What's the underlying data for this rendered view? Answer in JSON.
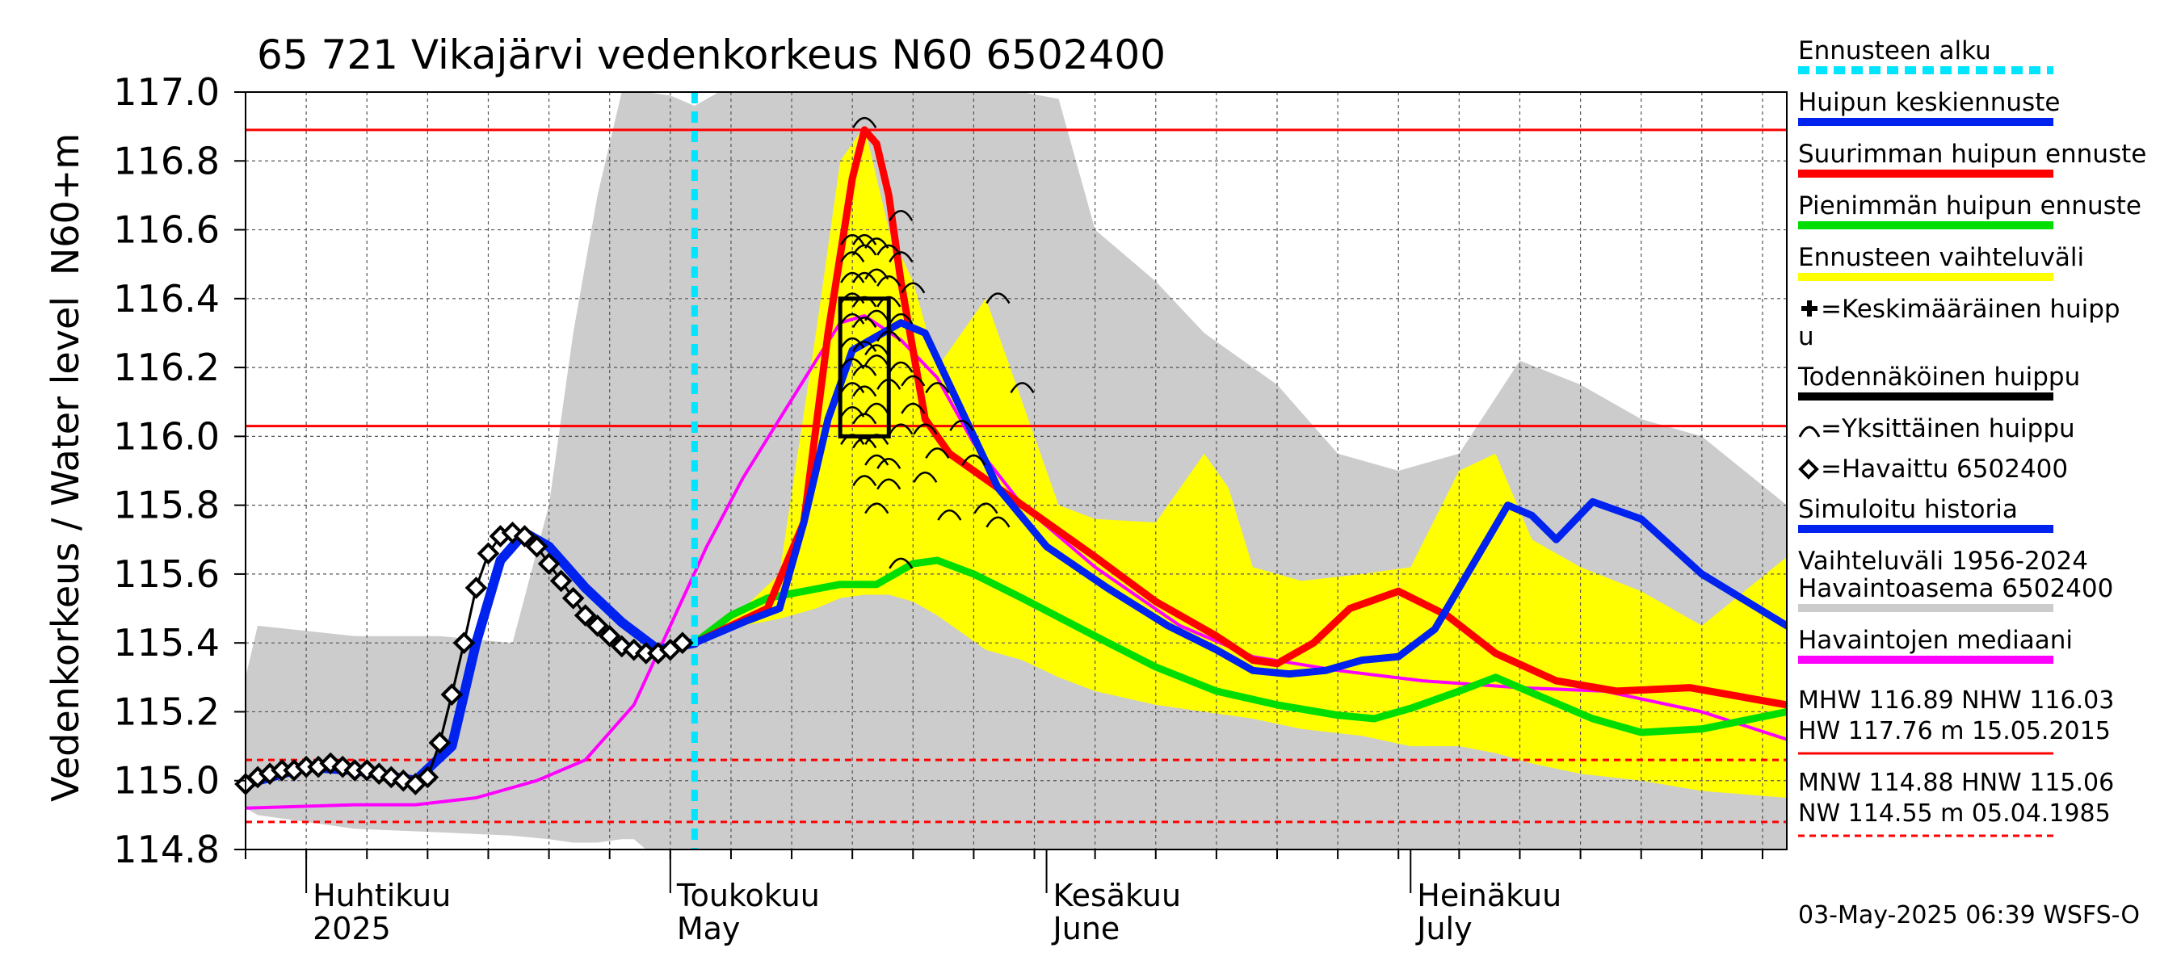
{
  "chart_data": {
    "type": "line",
    "title": "65 721 Vikajärvi vedenkorkeus N60 6502400",
    "ylabel_upper": "N60+m",
    "ylabel": "Vedenkorkeus / Water level",
    "ylim": [
      114.8,
      117.0
    ],
    "yticks": [
      "114.8",
      "115.0",
      "115.2",
      "115.4",
      "115.6",
      "115.8",
      "116.0",
      "116.2",
      "116.4",
      "116.6",
      "116.8",
      "117.0"
    ],
    "xlim": [
      "2025-03-27",
      "2025-08-01"
    ],
    "grid": true,
    "months": [
      {
        "date": "2025-04-01",
        "fi": "Huhtikuu",
        "en": "2025"
      },
      {
        "date": "2025-05-01",
        "fi": "Toukokuu",
        "en": "May"
      },
      {
        "date": "2025-06-01",
        "fi": "Kesäkuu",
        "en": "June"
      },
      {
        "date": "2025-07-01",
        "fi": "Heinäkuu",
        "en": "July"
      }
    ],
    "forecast_start": "2025-05-03",
    "reference_lines": [
      {
        "name": "MHW",
        "value": 116.89,
        "color": "#ff0000",
        "style": "solid"
      },
      {
        "name": "NHW",
        "value": 116.03,
        "color": "#ff0000",
        "style": "solid"
      },
      {
        "name": "HNW",
        "value": 115.06,
        "color": "#ff0000",
        "style": "dashed"
      },
      {
        "name": "MNW",
        "value": 114.88,
        "color": "#ff0000",
        "style": "dashed"
      }
    ],
    "series": [
      {
        "name": "Havaittu 6502400",
        "color": "#000000",
        "marker": "diamond",
        "x": [
          "2025-03-27",
          "2025-03-28",
          "2025-03-29",
          "2025-03-30",
          "2025-03-31",
          "2025-04-01",
          "2025-04-02",
          "2025-04-03",
          "2025-04-04",
          "2025-04-05",
          "2025-04-06",
          "2025-04-07",
          "2025-04-08",
          "2025-04-09",
          "2025-04-10",
          "2025-04-11",
          "2025-04-12",
          "2025-04-13",
          "2025-04-14",
          "2025-04-15",
          "2025-04-16",
          "2025-04-17",
          "2025-04-18",
          "2025-04-19",
          "2025-04-20",
          "2025-04-21",
          "2025-04-22",
          "2025-04-23",
          "2025-04-24",
          "2025-04-25",
          "2025-04-26",
          "2025-04-27",
          "2025-04-28",
          "2025-04-29",
          "2025-04-30",
          "2025-05-01",
          "2025-05-02"
        ],
        "y": [
          114.99,
          115.01,
          115.02,
          115.03,
          115.03,
          115.04,
          115.04,
          115.05,
          115.04,
          115.03,
          115.03,
          115.02,
          115.01,
          115.0,
          114.99,
          115.01,
          115.11,
          115.25,
          115.4,
          115.56,
          115.66,
          115.71,
          115.72,
          115.71,
          115.68,
          115.63,
          115.58,
          115.53,
          115.48,
          115.45,
          115.42,
          115.39,
          115.38,
          115.37,
          115.37,
          115.38,
          115.4
        ]
      },
      {
        "name": "Simuloitu historia",
        "color": "#0022ee",
        "x": [
          "2025-03-27",
          "2025-04-01",
          "2025-04-05",
          "2025-04-10",
          "2025-04-13",
          "2025-04-15",
          "2025-04-17",
          "2025-04-19",
          "2025-04-21",
          "2025-04-24",
          "2025-04-27",
          "2025-04-30",
          "2025-05-03"
        ],
        "y": [
          114.99,
          115.04,
          115.03,
          115.0,
          115.1,
          115.4,
          115.64,
          115.72,
          115.68,
          115.56,
          115.46,
          115.38,
          115.4
        ]
      },
      {
        "name": "Huipun keskiennuste",
        "color": "#0022ee",
        "x": [
          "2025-05-03",
          "2025-05-07",
          "2025-05-10",
          "2025-05-12",
          "2025-05-14",
          "2025-05-16",
          "2025-05-18",
          "2025-05-20",
          "2025-05-22",
          "2025-05-24",
          "2025-05-28",
          "2025-06-01",
          "2025-06-06",
          "2025-06-11",
          "2025-06-15",
          "2025-06-18",
          "2025-06-21",
          "2025-06-24",
          "2025-06-27",
          "2025-06-30",
          "2025-07-03",
          "2025-07-06",
          "2025-07-09",
          "2025-07-11",
          "2025-07-13",
          "2025-07-16",
          "2025-07-20",
          "2025-07-25",
          "2025-08-01"
        ],
        "y": [
          115.4,
          115.46,
          115.5,
          115.75,
          116.05,
          116.25,
          116.29,
          116.33,
          116.3,
          116.15,
          115.85,
          115.68,
          115.56,
          115.45,
          115.38,
          115.32,
          115.31,
          115.32,
          115.35,
          115.36,
          115.44,
          115.62,
          115.8,
          115.77,
          115.7,
          115.81,
          115.76,
          115.6,
          115.45
        ]
      },
      {
        "name": "Suurimman huipun ennuste",
        "color": "#ff0000",
        "x": [
          "2025-05-03",
          "2025-05-06",
          "2025-05-09",
          "2025-05-12",
          "2025-05-14",
          "2025-05-16",
          "2025-05-17",
          "2025-05-18",
          "2025-05-19",
          "2025-05-20",
          "2025-05-22",
          "2025-05-24",
          "2025-05-26",
          "2025-05-30",
          "2025-06-05",
          "2025-06-10",
          "2025-06-15",
          "2025-06-18",
          "2025-06-20",
          "2025-06-23",
          "2025-06-26",
          "2025-06-30",
          "2025-07-04",
          "2025-07-08",
          "2025-07-13",
          "2025-07-18",
          "2025-07-24",
          "2025-08-01"
        ],
        "y": [
          115.4,
          115.45,
          115.5,
          115.75,
          116.3,
          116.75,
          116.89,
          116.85,
          116.7,
          116.45,
          116.05,
          115.95,
          115.9,
          115.8,
          115.65,
          115.52,
          115.42,
          115.35,
          115.34,
          115.4,
          115.5,
          115.55,
          115.48,
          115.37,
          115.29,
          115.26,
          115.27,
          115.22
        ]
      },
      {
        "name": "Pienimmän huipun ennuste",
        "color": "#00dd00",
        "x": [
          "2025-05-03",
          "2025-05-06",
          "2025-05-09",
          "2025-05-12",
          "2025-05-15",
          "2025-05-18",
          "2025-05-21",
          "2025-05-23",
          "2025-05-26",
          "2025-05-30",
          "2025-06-05",
          "2025-06-10",
          "2025-06-15",
          "2025-06-20",
          "2025-06-25",
          "2025-06-28",
          "2025-07-01",
          "2025-07-05",
          "2025-07-08",
          "2025-07-12",
          "2025-07-16",
          "2025-07-20",
          "2025-07-25",
          "2025-08-01"
        ],
        "y": [
          115.4,
          115.48,
          115.53,
          115.55,
          115.57,
          115.57,
          115.63,
          115.64,
          115.6,
          115.53,
          115.42,
          115.33,
          115.26,
          115.22,
          115.19,
          115.18,
          115.21,
          115.26,
          115.3,
          115.24,
          115.18,
          115.14,
          115.15,
          115.2
        ]
      },
      {
        "name": "Havaintojen mediaani",
        "color": "#ff00ff",
        "x": [
          "2025-03-27",
          "2025-04-05",
          "2025-04-10",
          "2025-04-15",
          "2025-04-20",
          "2025-04-24",
          "2025-04-28",
          "2025-05-01",
          "2025-05-04",
          "2025-05-07",
          "2025-05-10",
          "2025-05-13",
          "2025-05-15",
          "2025-05-17",
          "2025-05-20",
          "2025-05-23",
          "2025-05-26",
          "2025-05-30",
          "2025-06-05",
          "2025-06-12",
          "2025-06-18",
          "2025-06-25",
          "2025-07-02",
          "2025-07-10",
          "2025-07-17",
          "2025-07-25",
          "2025-08-01"
        ],
        "y": [
          114.92,
          114.93,
          114.93,
          114.95,
          115.0,
          115.06,
          115.22,
          115.45,
          115.68,
          115.88,
          116.05,
          116.22,
          116.33,
          116.35,
          116.28,
          116.17,
          115.98,
          115.8,
          115.62,
          115.45,
          115.36,
          115.32,
          115.29,
          115.27,
          115.26,
          115.2,
          115.12
        ]
      }
    ],
    "bands": [
      {
        "name": "Ennusteen vaihteluväli",
        "color": "#ffff00",
        "x": [
          "2025-05-03",
          "2025-05-07",
          "2025-05-10",
          "2025-05-13",
          "2025-05-15",
          "2025-05-17",
          "2025-05-19",
          "2025-05-21",
          "2025-05-23",
          "2025-05-25",
          "2025-05-27",
          "2025-05-30",
          "2025-06-02",
          "2025-06-05",
          "2025-06-10",
          "2025-06-14",
          "2025-06-16",
          "2025-06-18",
          "2025-06-22",
          "2025-06-27",
          "2025-07-01",
          "2025-07-05",
          "2025-07-08",
          "2025-07-11",
          "2025-07-15",
          "2025-07-20",
          "2025-07-25",
          "2025-08-01"
        ],
        "upper": [
          115.4,
          115.5,
          115.6,
          116.3,
          116.8,
          116.9,
          116.6,
          116.45,
          116.2,
          116.3,
          116.4,
          116.1,
          115.8,
          115.76,
          115.75,
          115.95,
          115.85,
          115.62,
          115.58,
          115.6,
          115.62,
          115.9,
          115.95,
          115.7,
          115.62,
          115.55,
          115.45,
          115.65
        ],
        "lower": [
          115.4,
          115.45,
          115.47,
          115.5,
          115.53,
          115.54,
          115.54,
          115.52,
          115.48,
          115.43,
          115.38,
          115.35,
          115.3,
          115.26,
          115.22,
          115.2,
          115.19,
          115.18,
          115.15,
          115.13,
          115.1,
          115.1,
          115.08,
          115.05,
          115.02,
          115.0,
          114.97,
          114.95
        ]
      },
      {
        "name": "Vaihteluväli 1956-2024 Havaintoasema 6502400",
        "color": "#cccccc",
        "x": [
          "2025-03-27",
          "2025-03-28",
          "2025-04-05",
          "2025-04-12",
          "2025-04-18",
          "2025-04-21",
          "2025-04-23",
          "2025-04-25",
          "2025-04-27",
          "2025-04-28",
          "2025-04-29",
          "2025-05-01",
          "2025-05-03",
          "2025-05-05",
          "2025-05-08",
          "2025-05-12",
          "2025-05-16",
          "2025-05-20",
          "2025-05-25",
          "2025-05-30",
          "2025-06-02",
          "2025-06-05",
          "2025-06-10",
          "2025-06-14",
          "2025-06-20",
          "2025-06-25",
          "2025-06-30",
          "2025-07-05",
          "2025-07-10",
          "2025-07-15",
          "2025-07-20",
          "2025-07-25",
          "2025-08-01"
        ],
        "upper": [
          115.3,
          115.45,
          115.42,
          115.42,
          115.4,
          115.8,
          116.3,
          116.7,
          117.0,
          117.0,
          117.0,
          116.99,
          116.96,
          117.0,
          117.0,
          117.0,
          117.0,
          117.0,
          117.0,
          117.0,
          116.98,
          116.6,
          116.45,
          116.3,
          116.15,
          115.95,
          115.9,
          115.95,
          116.22,
          116.15,
          116.05,
          116.0,
          115.8
        ],
        "lower": [
          114.92,
          114.9,
          114.86,
          114.85,
          114.84,
          114.83,
          114.82,
          114.82,
          114.83,
          114.83,
          114.8,
          114.8,
          114.8,
          114.8,
          114.8,
          114.8,
          114.8,
          114.8,
          114.8,
          114.8,
          114.8,
          114.8,
          114.8,
          114.8,
          114.8,
          114.8,
          114.8,
          114.8,
          114.8,
          114.8,
          114.8,
          114.8,
          114.8
        ]
      }
    ],
    "probable_peak_box": {
      "x_start": "2025-05-15",
      "x_end": "2025-05-19",
      "y_low": 116.0,
      "y_high": 116.4
    },
    "individual_peaks": [
      {
        "x": "2025-05-17",
        "y": 116.92
      },
      {
        "x": "2025-05-20",
        "y": 116.65
      },
      {
        "x": "2025-05-16",
        "y": 116.58
      },
      {
        "x": "2025-05-17",
        "y": 116.58
      },
      {
        "x": "2025-05-18",
        "y": 116.57
      },
      {
        "x": "2025-05-19",
        "y": 116.55
      },
      {
        "x": "2025-05-16",
        "y": 116.53
      },
      {
        "x": "2025-05-17",
        "y": 116.55
      },
      {
        "x": "2025-05-20",
        "y": 116.53
      },
      {
        "x": "2025-05-16",
        "y": 116.47
      },
      {
        "x": "2025-05-17",
        "y": 116.47
      },
      {
        "x": "2025-05-18",
        "y": 116.48
      },
      {
        "x": "2025-05-19",
        "y": 116.46
      },
      {
        "x": "2025-05-21",
        "y": 116.44
      },
      {
        "x": "2025-05-16",
        "y": 116.41
      },
      {
        "x": "2025-05-17",
        "y": 116.4
      },
      {
        "x": "2025-05-19",
        "y": 116.4
      },
      {
        "x": "2025-05-28",
        "y": 116.41
      },
      {
        "x": "2025-05-16",
        "y": 116.35
      },
      {
        "x": "2025-05-17",
        "y": 116.34
      },
      {
        "x": "2025-05-18",
        "y": 116.36
      },
      {
        "x": "2025-05-20",
        "y": 116.35
      },
      {
        "x": "2025-05-16",
        "y": 116.28
      },
      {
        "x": "2025-05-17",
        "y": 116.27
      },
      {
        "x": "2025-05-18",
        "y": 116.26
      },
      {
        "x": "2025-05-19",
        "y": 116.3
      },
      {
        "x": "2025-05-16",
        "y": 116.22
      },
      {
        "x": "2025-05-17",
        "y": 116.2
      },
      {
        "x": "2025-05-18",
        "y": 116.23
      },
      {
        "x": "2025-05-20",
        "y": 116.21
      },
      {
        "x": "2025-05-16",
        "y": 116.15
      },
      {
        "x": "2025-05-17",
        "y": 116.14
      },
      {
        "x": "2025-05-19",
        "y": 116.16
      },
      {
        "x": "2025-05-21",
        "y": 116.17
      },
      {
        "x": "2025-05-23",
        "y": 116.15
      },
      {
        "x": "2025-05-30",
        "y": 116.15
      },
      {
        "x": "2025-05-16",
        "y": 116.08
      },
      {
        "x": "2025-05-17",
        "y": 116.06
      },
      {
        "x": "2025-05-18",
        "y": 116.09
      },
      {
        "x": "2025-05-21",
        "y": 116.09
      },
      {
        "x": "2025-05-25",
        "y": 116.04
      },
      {
        "x": "2025-05-16",
        "y": 116.0
      },
      {
        "x": "2025-05-17",
        "y": 115.99
      },
      {
        "x": "2025-05-18",
        "y": 116.0
      },
      {
        "x": "2025-05-20",
        "y": 116.03
      },
      {
        "x": "2025-05-22",
        "y": 116.03
      },
      {
        "x": "2025-05-18",
        "y": 115.94
      },
      {
        "x": "2025-05-19",
        "y": 115.93
      },
      {
        "x": "2025-05-23",
        "y": 115.96
      },
      {
        "x": "2025-05-26",
        "y": 115.94
      },
      {
        "x": "2025-05-17",
        "y": 115.88
      },
      {
        "x": "2025-05-19",
        "y": 115.87
      },
      {
        "x": "2025-05-22",
        "y": 115.89
      },
      {
        "x": "2025-05-18",
        "y": 115.8
      },
      {
        "x": "2025-05-24",
        "y": 115.78
      },
      {
        "x": "2025-05-27",
        "y": 115.8
      },
      {
        "x": "2025-05-28",
        "y": 115.76
      },
      {
        "x": "2025-05-20",
        "y": 115.64
      }
    ]
  },
  "legend": {
    "items": [
      {
        "label": "Ennusteen alku",
        "color": "#00e5ff",
        "kind": "dashed"
      },
      {
        "label": "Huipun keskiennuste",
        "color": "#0022ee",
        "kind": "line"
      },
      {
        "label": "Suurimman huipun ennuste",
        "color": "#ff0000",
        "kind": "line"
      },
      {
        "label": "Pienimmän huipun ennuste",
        "color": "#00dd00",
        "kind": "line"
      },
      {
        "label": "Ennusteen vaihteluväli",
        "color": "#ffff00",
        "kind": "line"
      },
      {
        "label": "=Keskimääräinen huipp",
        "label2": "u",
        "color": "#000000",
        "kind": "plus"
      },
      {
        "label": "Todennäköinen huippu",
        "color": "#000000",
        "kind": "line"
      },
      {
        "label": "=Yksittäinen huippu",
        "color": "#000000",
        "kind": "arc"
      },
      {
        "label": "=Havaittu 6502400",
        "color": "#000000",
        "kind": "diamond"
      },
      {
        "label": "Simuloitu historia",
        "color": "#0022ee",
        "kind": "line"
      },
      {
        "label": "Vaihteluväli 1956-2024",
        "label2": " Havaintoasema 6502400",
        "color": "#cccccc",
        "kind": "line"
      },
      {
        "label": "Havaintojen mediaani",
        "color": "#ff00ff",
        "kind": "line"
      }
    ],
    "stats": {
      "line1": "MHW 116.89 NHW 116.03",
      "line2": "HW 117.76 m 15.05.2015",
      "line3": "MNW 114.88 HNW 115.06",
      "line4": "NW 114.55 m 05.04.1985"
    },
    "footer": "03-May-2025 06:39 WSFS-O"
  }
}
